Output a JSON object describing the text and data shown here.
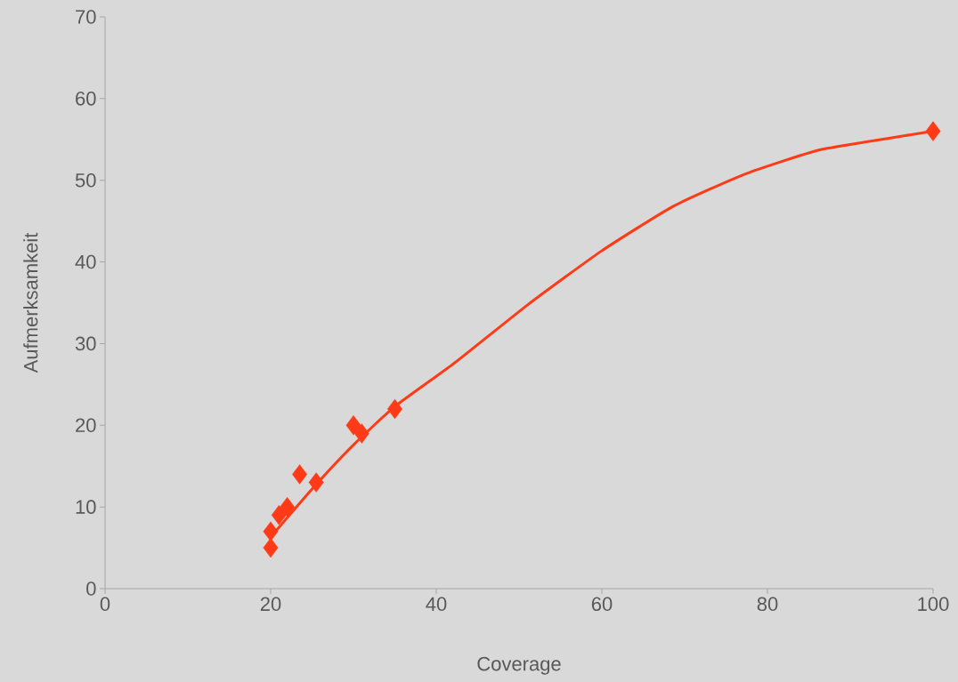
{
  "chart_data": {
    "type": "scatter",
    "xlabel": "Coverage",
    "ylabel": "Aufmerksamkeit",
    "xlim": [
      0,
      100
    ],
    "ylim": [
      0,
      70
    ],
    "xticks": [
      0,
      20,
      40,
      60,
      80,
      100
    ],
    "yticks": [
      0,
      10,
      20,
      30,
      40,
      50,
      60,
      70
    ],
    "grid": false,
    "series": [
      {
        "color": "#ff3a16",
        "marker": "diamond",
        "x": [
          20,
          20,
          21,
          22,
          23.5,
          25.5,
          30,
          31,
          35,
          100
        ],
        "values": [
          5,
          7,
          9,
          10,
          14,
          13,
          20,
          19,
          22,
          56
        ]
      },
      {
        "type": "line",
        "color": "#ff3a16",
        "marker": "none",
        "line_style": "solid",
        "x": [
          19.9,
          25,
          30,
          35,
          42.3,
          51.1,
          59.9,
          68.6,
          77.4,
          86.2,
          95,
          100
        ],
        "values": [
          6.2,
          12.2,
          17.6,
          22.3,
          27.7,
          34.8,
          41.3,
          46.8,
          50.8,
          53.7,
          55.2,
          56
        ]
      }
    ]
  }
}
